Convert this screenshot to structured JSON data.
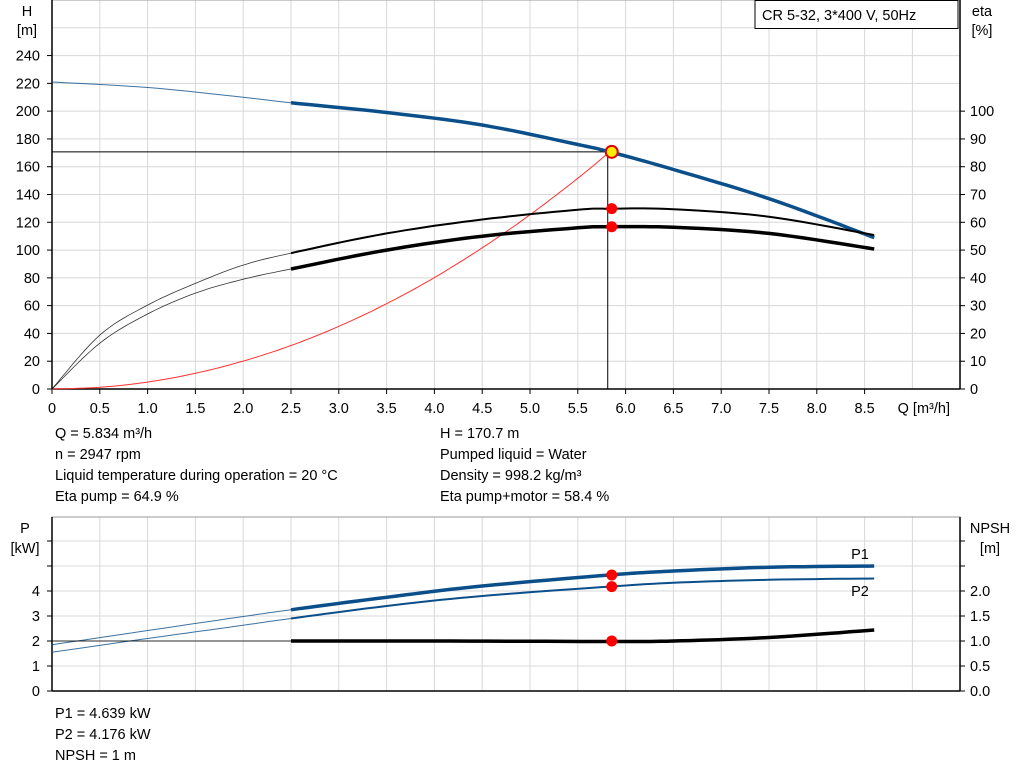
{
  "chart_data": [
    {
      "type": "line",
      "title": "",
      "legend_box": "CR 5-32, 3*400 V, 50Hz",
      "legend_placement": "top-right",
      "xlabel": "Q [m³/h]",
      "ylabel_left": [
        "H",
        "[m]"
      ],
      "ylabel_right": [
        "eta",
        "[%]"
      ],
      "xlim": [
        0,
        9.5
      ],
      "ylim_left": [
        0,
        280
      ],
      "ylim_right": [
        0,
        140
      ],
      "x_ticks": [
        "0",
        "0.5",
        "1.0",
        "1.5",
        "2.0",
        "2.5",
        "3.0",
        "3.5",
        "4.0",
        "4.5",
        "5.0",
        "5.5",
        "6.0",
        "6.5",
        "7.0",
        "7.5",
        "8.0",
        "8.5"
      ],
      "y_ticks_left": [
        "0",
        "20",
        "40",
        "60",
        "80",
        "100",
        "120",
        "140",
        "160",
        "180",
        "200",
        "220",
        "240"
      ],
      "y_ticks_right": [
        "0",
        "10",
        "20",
        "30",
        "40",
        "50",
        "60",
        "70",
        "80",
        "90",
        "100"
      ],
      "grid": true,
      "operating_range_start": 2.5,
      "series": [
        {
          "id": "H",
          "axis": "left",
          "color": "#0b4f8a",
          "points": [
            [
              0,
              221
            ],
            [
              1,
              217
            ],
            [
              2,
              210
            ],
            [
              2.5,
              206
            ],
            [
              3.5,
              199
            ],
            [
              4.5,
              190
            ],
            [
              5.5,
              176
            ],
            [
              5.834,
              170.7
            ],
            [
              6.5,
              158
            ],
            [
              7.5,
              137
            ],
            [
              8.6,
              109
            ]
          ]
        },
        {
          "id": "eta_pump",
          "axis": "right",
          "color": "#000000",
          "points": [
            [
              0,
              0
            ],
            [
              0.5,
              19.4
            ],
            [
              1,
              30.2
            ],
            [
              1.5,
              38
            ],
            [
              2,
              44.6
            ],
            [
              2.5,
              48.9
            ],
            [
              3.5,
              56
            ],
            [
              4.5,
              61
            ],
            [
              5.5,
              64.5
            ],
            [
              5.834,
              64.9
            ],
            [
              6.5,
              64.7
            ],
            [
              7.5,
              62
            ],
            [
              8.6,
              55.4
            ]
          ]
        },
        {
          "id": "eta_pump_motor",
          "axis": "right",
          "color": "#000000",
          "points": [
            [
              0,
              0
            ],
            [
              0.5,
              16.5
            ],
            [
              1,
              27
            ],
            [
              1.5,
              34.5
            ],
            [
              2,
              39.5
            ],
            [
              2.5,
              43.2
            ],
            [
              3.5,
              50
            ],
            [
              4.5,
              55
            ],
            [
              5.5,
              58
            ],
            [
              5.834,
              58.4
            ],
            [
              6.5,
              58.2
            ],
            [
              7.5,
              56
            ],
            [
              8.6,
              50.4
            ]
          ]
        },
        {
          "id": "system_curve",
          "axis": "left",
          "color": "#ff3030",
          "points": [
            [
              0,
              0
            ],
            [
              0.5,
              1.25
            ],
            [
              1,
              5
            ],
            [
              1.5,
              11.3
            ],
            [
              2,
              20.1
            ],
            [
              2.5,
              31.3
            ],
            [
              3,
              45.1
            ],
            [
              3.5,
              61.4
            ],
            [
              4,
              80.2
            ],
            [
              4.5,
              101.6
            ],
            [
              5,
              125.4
            ],
            [
              5.5,
              151.7
            ],
            [
              5.834,
              170.7
            ]
          ]
        }
      ],
      "duty_point": {
        "Q": 5.834,
        "H": 170.7,
        "eta_pump": 64.9,
        "eta_pump_motor": 58.4
      }
    },
    {
      "type": "line",
      "title": "",
      "ylabel_left": [
        "P",
        "[kW]"
      ],
      "ylabel_right": [
        "NPSH",
        "[m]"
      ],
      "xlim": [
        0,
        9.5
      ],
      "ylim_left": [
        0,
        7
      ],
      "ylim_right": [
        0,
        3.5
      ],
      "y_ticks_left": [
        "0",
        "1",
        "2",
        "3",
        "4"
      ],
      "y_ticks_right": [
        "0.0",
        "0.5",
        "1.0",
        "1.5",
        "2.0"
      ],
      "grid": true,
      "series": [
        {
          "id": "P1",
          "name": "P1",
          "axis": "left",
          "color": "#0b4f8a",
          "points": [
            [
              0,
              1.85
            ],
            [
              1,
              2.42
            ],
            [
              2,
              2.98
            ],
            [
              2.5,
              3.25
            ],
            [
              3.5,
              3.75
            ],
            [
              4.5,
              4.2
            ],
            [
              5.834,
              4.639
            ],
            [
              6.5,
              4.8
            ],
            [
              7.5,
              4.95
            ],
            [
              8.6,
              5.0
            ]
          ]
        },
        {
          "id": "P2",
          "name": "P2",
          "axis": "left",
          "color": "#0b4f8a",
          "points": [
            [
              0,
              1.55
            ],
            [
              1,
              2.1
            ],
            [
              2,
              2.63
            ],
            [
              2.5,
              2.9
            ],
            [
              3.5,
              3.4
            ],
            [
              4.5,
              3.8
            ],
            [
              5.834,
              4.176
            ],
            [
              6.5,
              4.33
            ],
            [
              7.5,
              4.45
            ],
            [
              8.6,
              4.5
            ]
          ]
        },
        {
          "id": "NPSH",
          "axis": "right",
          "color": "#000000",
          "points": [
            [
              0,
              1.0
            ],
            [
              2.5,
              1.0
            ],
            [
              4,
              1.0
            ],
            [
              5.834,
              0.99
            ],
            [
              6.5,
              1.0
            ],
            [
              7.5,
              1.07
            ],
            [
              8.6,
              1.22
            ]
          ]
        }
      ],
      "duty_point": {
        "Q": 5.834,
        "P1": 4.639,
        "P2": 4.176,
        "NPSH": 1
      }
    }
  ],
  "info_top": {
    "left": [
      "Q = 5.834 m³/h",
      "n = 2947 rpm",
      "Liquid temperature during operation = 20 °C",
      "Eta pump = 64.9 %"
    ],
    "right": [
      "H = 170.7 m",
      "Pumped liquid = Water",
      "Density = 998.2 kg/m³",
      "Eta pump+motor = 58.4 %"
    ]
  },
  "info_bottom": [
    "P1 = 4.639 kW",
    "P2 = 4.176 kW",
    "NPSH = 1 m"
  ]
}
